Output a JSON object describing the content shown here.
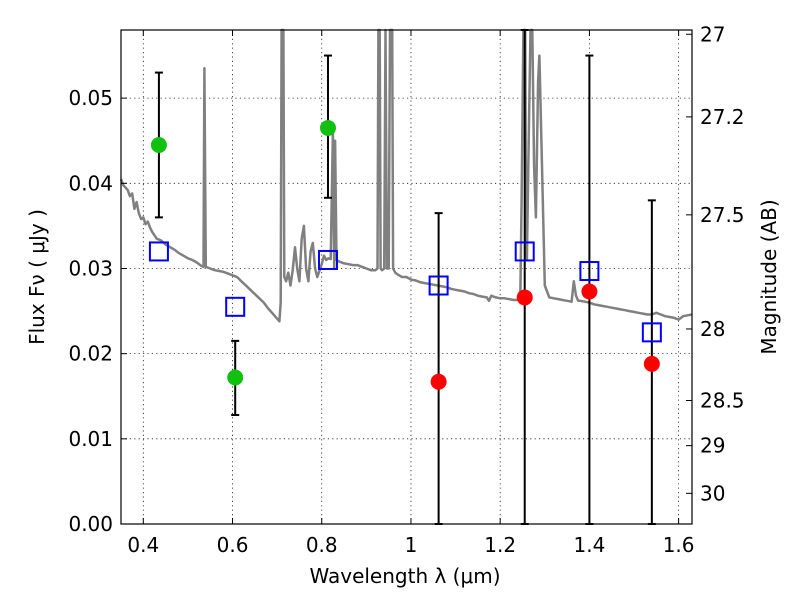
{
  "chart_data": {
    "type": "scatter",
    "xlabel": "Wavelength  λ (μm)",
    "ylabel": "Flux  Fν  ( μJy )",
    "ylabel_right": "Magnitude (AB)",
    "xlim": [
      0.35,
      1.63
    ],
    "ylim": [
      0.0,
      0.058
    ],
    "grid": true,
    "x_ticks": [
      0.4,
      0.6,
      0.8,
      1.0,
      1.2,
      1.4,
      1.6
    ],
    "x_tick_labels": [
      "0.4",
      "0.6",
      "0.8",
      "1",
      "1.2",
      "1.4",
      "1.6"
    ],
    "y_ticks": [
      0.0,
      0.01,
      0.02,
      0.03,
      0.04,
      0.05
    ],
    "y_tick_labels": [
      "0.00",
      "0.01",
      "0.02",
      "0.03",
      "0.04",
      "0.05"
    ],
    "mag_ticks": [
      {
        "label": "27",
        "flux": 0.0575
      },
      {
        "label": "27.2",
        "flux": 0.0478
      },
      {
        "label": "27.5",
        "flux": 0.0363
      },
      {
        "label": "28",
        "flux": 0.0229
      },
      {
        "label": "28.5",
        "flux": 0.0145
      },
      {
        "label": "29",
        "flux": 0.0092
      },
      {
        "label": "30",
        "flux": 0.0036
      }
    ],
    "series": [
      {
        "kind": "detections",
        "color": "#11c011",
        "points": [
          {
            "x": 0.435,
            "y": 0.0445,
            "ylo": 0.036,
            "yhi": 0.053
          },
          {
            "x": 0.606,
            "y": 0.0172,
            "ylo": 0.0128,
            "yhi": 0.0215
          },
          {
            "x": 0.814,
            "y": 0.0465,
            "ylo": 0.0383,
            "yhi": 0.055
          }
        ]
      },
      {
        "kind": "upper-limits",
        "color": "#ff0000",
        "points": [
          {
            "x": 1.062,
            "y": 0.0167,
            "ylo": 0.0,
            "yhi": 0.0365
          },
          {
            "x": 1.255,
            "y": 0.0266,
            "ylo": 0.0,
            "yhi": 0.058
          },
          {
            "x": 1.4,
            "y": 0.0273,
            "ylo": 0.0,
            "yhi": 0.055
          },
          {
            "x": 1.54,
            "y": 0.0188,
            "ylo": 0.0,
            "yhi": 0.038
          }
        ]
      },
      {
        "kind": "model-photometry",
        "color": "#0000ff",
        "points": [
          {
            "x": 0.435,
            "y": 0.032
          },
          {
            "x": 0.606,
            "y": 0.0255
          },
          {
            "x": 0.814,
            "y": 0.031
          },
          {
            "x": 1.062,
            "y": 0.028
          },
          {
            "x": 1.255,
            "y": 0.032
          },
          {
            "x": 1.4,
            "y": 0.0297
          },
          {
            "x": 1.54,
            "y": 0.0225
          }
        ]
      }
    ],
    "model_spectrum": {
      "color": "#808080",
      "points": [
        [
          0.35,
          0.0405
        ],
        [
          0.355,
          0.0398
        ],
        [
          0.36,
          0.0395
        ],
        [
          0.365,
          0.0392
        ],
        [
          0.37,
          0.0385
        ],
        [
          0.375,
          0.0388
        ],
        [
          0.38,
          0.037
        ],
        [
          0.385,
          0.0378
        ],
        [
          0.39,
          0.0365
        ],
        [
          0.395,
          0.0358
        ],
        [
          0.4,
          0.036
        ],
        [
          0.405,
          0.0352
        ],
        [
          0.41,
          0.0355
        ],
        [
          0.415,
          0.0348
        ],
        [
          0.42,
          0.0343
        ],
        [
          0.43,
          0.0335
        ],
        [
          0.44,
          0.0333
        ],
        [
          0.45,
          0.0328
        ],
        [
          0.46,
          0.0325
        ],
        [
          0.47,
          0.0322
        ],
        [
          0.48,
          0.0318
        ],
        [
          0.49,
          0.0315
        ],
        [
          0.5,
          0.0312
        ],
        [
          0.51,
          0.031
        ],
        [
          0.52,
          0.0307
        ],
        [
          0.53,
          0.0303
        ],
        [
          0.535,
          0.0302
        ],
        [
          0.537,
          0.0535
        ],
        [
          0.54,
          0.0302
        ],
        [
          0.55,
          0.03
        ],
        [
          0.56,
          0.0298
        ],
        [
          0.57,
          0.0297
        ],
        [
          0.58,
          0.0296
        ],
        [
          0.59,
          0.0294
        ],
        [
          0.6,
          0.0292
        ],
        [
          0.61,
          0.029
        ],
        [
          0.62,
          0.0285
        ],
        [
          0.63,
          0.028
        ],
        [
          0.64,
          0.0275
        ],
        [
          0.65,
          0.027
        ],
        [
          0.66,
          0.0265
        ],
        [
          0.67,
          0.026
        ],
        [
          0.68,
          0.0253
        ],
        [
          0.69,
          0.0247
        ],
        [
          0.7,
          0.0241
        ],
        [
          0.705,
          0.0238
        ],
        [
          0.708,
          0.026
        ],
        [
          0.71,
          0.058
        ],
        [
          0.714,
          0.058
        ],
        [
          0.716,
          0.029
        ],
        [
          0.72,
          0.0285
        ],
        [
          0.725,
          0.0295
        ],
        [
          0.73,
          0.028
        ],
        [
          0.735,
          0.0298
        ],
        [
          0.74,
          0.0325
        ],
        [
          0.745,
          0.03
        ],
        [
          0.75,
          0.0285
        ],
        [
          0.755,
          0.0335
        ],
        [
          0.76,
          0.035
        ],
        [
          0.765,
          0.03
        ],
        [
          0.77,
          0.0285
        ],
        [
          0.775,
          0.032
        ],
        [
          0.78,
          0.033
        ],
        [
          0.785,
          0.03
        ],
        [
          0.79,
          0.029
        ],
        [
          0.8,
          0.0305
        ],
        [
          0.805,
          0.0315
        ],
        [
          0.81,
          0.031
        ],
        [
          0.815,
          0.0312
        ],
        [
          0.82,
          0.0311
        ],
        [
          0.825,
          0.046
        ],
        [
          0.828,
          0.03
        ],
        [
          0.83,
          0.045
        ],
        [
          0.833,
          0.031
        ],
        [
          0.84,
          0.0308
        ],
        [
          0.85,
          0.0306
        ],
        [
          0.86,
          0.0305
        ],
        [
          0.87,
          0.0304
        ],
        [
          0.88,
          0.0304
        ],
        [
          0.89,
          0.0302
        ],
        [
          0.9,
          0.03
        ],
        [
          0.91,
          0.0298
        ],
        [
          0.92,
          0.0298
        ],
        [
          0.925,
          0.03
        ],
        [
          0.927,
          0.058
        ],
        [
          0.93,
          0.058
        ],
        [
          0.932,
          0.03
        ],
        [
          0.935,
          0.0298
        ],
        [
          0.94,
          0.03
        ],
        [
          0.943,
          0.058
        ],
        [
          0.946,
          0.03
        ],
        [
          0.95,
          0.03
        ],
        [
          0.953,
          0.058
        ],
        [
          0.958,
          0.058
        ],
        [
          0.96,
          0.03
        ],
        [
          0.965,
          0.0295
        ],
        [
          0.97,
          0.0293
        ],
        [
          0.98,
          0.029
        ],
        [
          0.99,
          0.029
        ],
        [
          1.0,
          0.0287
        ],
        [
          1.01,
          0.0286
        ],
        [
          1.02,
          0.0284
        ],
        [
          1.03,
          0.0283
        ],
        [
          1.04,
          0.0282
        ],
        [
          1.05,
          0.0281
        ],
        [
          1.06,
          0.028
        ],
        [
          1.07,
          0.0279
        ],
        [
          1.08,
          0.0278
        ],
        [
          1.09,
          0.0276
        ],
        [
          1.1,
          0.0275
        ],
        [
          1.11,
          0.0274
        ],
        [
          1.12,
          0.0273
        ],
        [
          1.13,
          0.0271
        ],
        [
          1.14,
          0.027
        ],
        [
          1.15,
          0.0268
        ],
        [
          1.16,
          0.0267
        ],
        [
          1.17,
          0.0266
        ],
        [
          1.175,
          0.0262
        ],
        [
          1.18,
          0.0268
        ],
        [
          1.19,
          0.0266
        ],
        [
          1.2,
          0.0265
        ],
        [
          1.21,
          0.0265
        ],
        [
          1.22,
          0.0264
        ],
        [
          1.23,
          0.0263
        ],
        [
          1.24,
          0.0263
        ],
        [
          1.245,
          0.0265
        ],
        [
          1.248,
          0.038
        ],
        [
          1.252,
          0.058
        ],
        [
          1.256,
          0.058
        ],
        [
          1.258,
          0.033
        ],
        [
          1.26,
          0.031
        ],
        [
          1.263,
          0.042
        ],
        [
          1.268,
          0.058
        ],
        [
          1.272,
          0.058
        ],
        [
          1.276,
          0.042
        ],
        [
          1.28,
          0.036
        ],
        [
          1.285,
          0.052
        ],
        [
          1.288,
          0.055
        ],
        [
          1.292,
          0.046
        ],
        [
          1.3,
          0.028
        ],
        [
          1.31,
          0.0266
        ],
        [
          1.32,
          0.0265
        ],
        [
          1.33,
          0.0264
        ],
        [
          1.34,
          0.0263
        ],
        [
          1.35,
          0.0262
        ],
        [
          1.36,
          0.0261
        ],
        [
          1.365,
          0.0285
        ],
        [
          1.37,
          0.0268
        ],
        [
          1.375,
          0.0262
        ],
        [
          1.38,
          0.0262
        ],
        [
          1.39,
          0.0261
        ],
        [
          1.4,
          0.026
        ],
        [
          1.41,
          0.0258
        ],
        [
          1.42,
          0.0257
        ],
        [
          1.43,
          0.0256
        ],
        [
          1.44,
          0.0255
        ],
        [
          1.45,
          0.0254
        ],
        [
          1.46,
          0.0253
        ],
        [
          1.47,
          0.0252
        ],
        [
          1.48,
          0.0251
        ],
        [
          1.49,
          0.025
        ],
        [
          1.5,
          0.0249
        ],
        [
          1.51,
          0.0248
        ],
        [
          1.52,
          0.0247
        ],
        [
          1.53,
          0.0246
        ],
        [
          1.54,
          0.0246
        ],
        [
          1.55,
          0.0248
        ],
        [
          1.56,
          0.0246
        ],
        [
          1.57,
          0.0244
        ],
        [
          1.58,
          0.0243
        ],
        [
          1.59,
          0.0242
        ],
        [
          1.6,
          0.024
        ],
        [
          1.61,
          0.0244
        ],
        [
          1.62,
          0.0245
        ],
        [
          1.63,
          0.0246
        ]
      ]
    }
  }
}
